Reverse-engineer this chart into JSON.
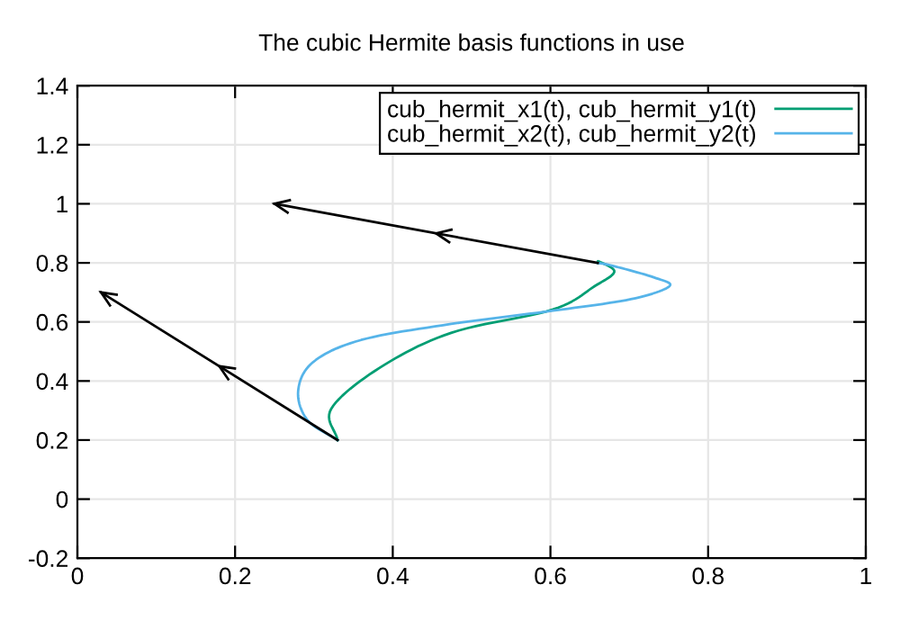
{
  "chart_data": {
    "type": "line",
    "title": "The cubic Hermite basis functions in use",
    "xlim": [
      0,
      1
    ],
    "ylim": [
      -0.2,
      1.4
    ],
    "xticks": [
      0,
      0.2,
      0.4,
      0.6,
      0.8,
      1
    ],
    "yticks": [
      -0.2,
      0,
      0.2,
      0.4,
      0.6,
      0.8,
      1,
      1.2,
      1.4
    ],
    "grid": true,
    "legend": "top right",
    "marker": "none",
    "line_style": "solid",
    "series": [
      {
        "name": "cub_hermit_x1(t), cub_hermit_y1(t)",
        "color": "#009e73",
        "x": [
          0.33,
          0.322,
          0.383,
          0.474,
          0.603,
          0.656,
          0.681,
          0.662,
          0.66
        ],
        "values": [
          0.2,
          0.306,
          0.444,
          0.563,
          0.642,
          0.721,
          0.77,
          0.804,
          0.8
        ]
      },
      {
        "name": "cub_hermit_x2(t), cub_hermit_y2(t)",
        "color": "#56b4e9",
        "x": [
          0.33,
          0.292,
          0.28,
          0.299,
          0.36,
          0.474,
          0.603,
          0.702,
          0.751,
          0.731,
          0.679,
          0.66
        ],
        "values": [
          0.2,
          0.267,
          0.366,
          0.464,
          0.539,
          0.593,
          0.638,
          0.677,
          0.721,
          0.751,
          0.79,
          0.8
        ]
      },
      {
        "type": "line",
        "color": "#000000",
        "x": [
          0.33,
          0.03
        ],
        "values": [
          0.2,
          0.7
        ]
      },
      {
        "type": "line",
        "color": "#000000",
        "x": [
          0.66,
          0.25
        ],
        "values": [
          0.8,
          1.0
        ]
      }
    ]
  }
}
